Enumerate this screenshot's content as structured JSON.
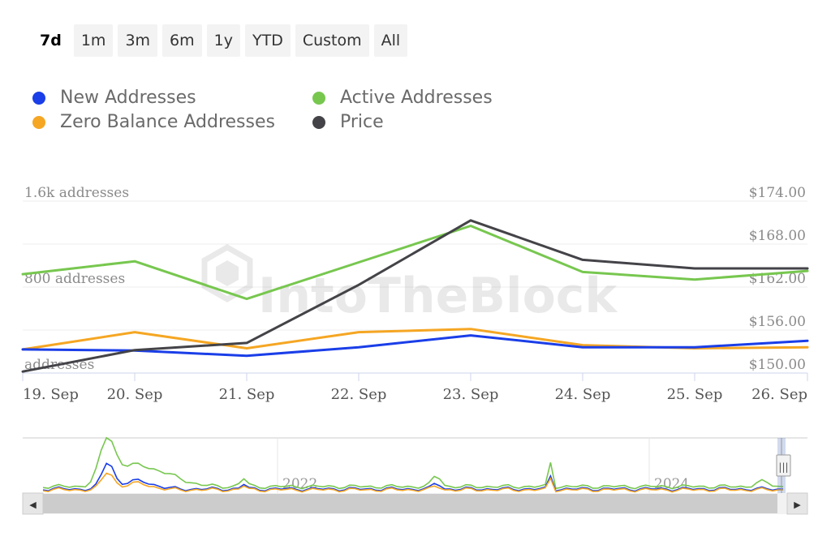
{
  "range_selector": {
    "buttons": [
      "7d",
      "1m",
      "3m",
      "6m",
      "1y",
      "YTD",
      "Custom",
      "All"
    ],
    "selected": "7d"
  },
  "watermark": "IntoTheBlock",
  "chart_data": {
    "type": "line",
    "title": "",
    "categories": [
      "19. Sep",
      "20. Sep",
      "21. Sep",
      "22. Sep",
      "23. Sep",
      "24. Sep",
      "25. Sep",
      "26. Sep"
    ],
    "x_ticks": [
      "19. Sep",
      "20. Sep",
      "21. Sep",
      "22. Sep",
      "23. Sep",
      "24. Sep",
      "25. Sep",
      "26. Sep"
    ],
    "y_left": {
      "tick_labels": [
        "1.6k addresses",
        "800 addresses",
        "addresses"
      ],
      "ticks": [
        1600,
        800,
        0
      ],
      "ylim": [
        0,
        1600
      ]
    },
    "y_right": {
      "tick_labels": [
        "$174.00",
        "$168.00",
        "$162.00",
        "$156.00",
        "$150.00"
      ],
      "ticks": [
        174,
        168,
        162,
        156,
        150
      ],
      "ylim": [
        150,
        174
      ]
    },
    "grid": true,
    "legend_position": "top-left",
    "series": [
      {
        "name": "New Addresses",
        "color": "#1a3ee8",
        "axis": "left",
        "values": [
          220,
          210,
          160,
          240,
          350,
          240,
          240,
          300
        ]
      },
      {
        "name": "Active Addresses",
        "color": "#77c74f",
        "axis": "left",
        "values": [
          920,
          1040,
          690,
          1030,
          1370,
          940,
          870,
          950
        ]
      },
      {
        "name": "Zero Balance Addresses",
        "color": "#f5a623",
        "axis": "left",
        "values": [
          220,
          380,
          230,
          380,
          410,
          260,
          230,
          240
        ]
      },
      {
        "name": "Price",
        "color": "#434348",
        "axis": "right",
        "values": [
          150.2,
          153.2,
          154.2,
          162.3,
          171.3,
          165.8,
          164.6,
          164.6
        ]
      }
    ]
  },
  "navigator": {
    "labels": [
      "2022",
      "2024"
    ],
    "handle_symbol": "|||",
    "left_arrow": "◀",
    "right_arrow": "▶"
  }
}
